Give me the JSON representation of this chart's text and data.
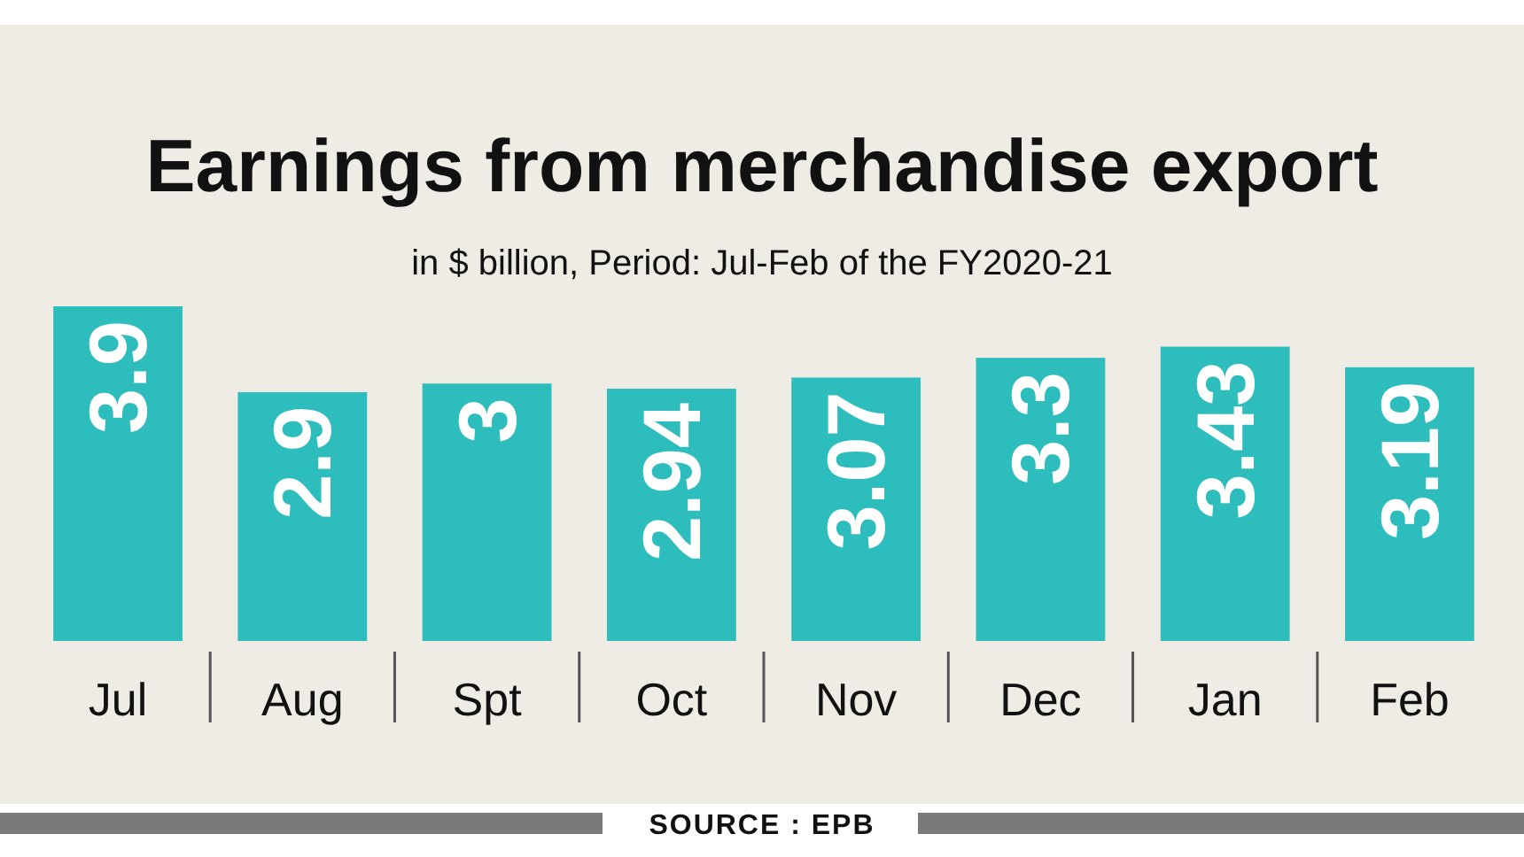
{
  "chart_data": {
    "type": "bar",
    "title": "Earnings from merchandise export",
    "subtitle": "in $ billion, Period: Jul-Feb of the FY2020-21",
    "categories": [
      "Jul",
      "Aug",
      "Spt",
      "Oct",
      "Nov",
      "Dec",
      "Jan",
      "Feb"
    ],
    "values": [
      3.9,
      2.9,
      3,
      2.94,
      3.07,
      3.3,
      3.43,
      3.19
    ],
    "color": "#2dbdbd",
    "data_labels": true,
    "annotations": [
      "SOURCE : EPB"
    ]
  }
}
